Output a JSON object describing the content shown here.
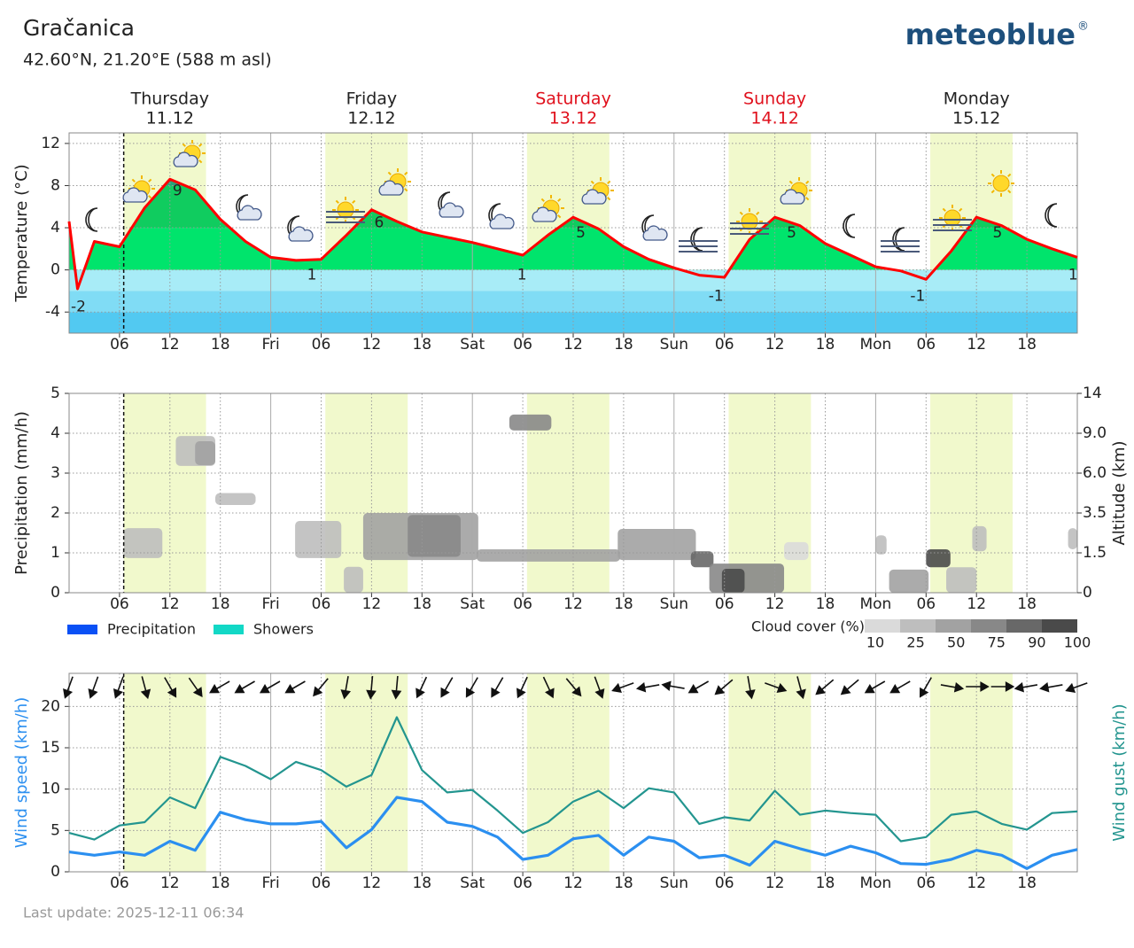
{
  "header": {
    "title": "Gračanica",
    "subtitle": "42.60°N, 21.20°E (588 m asl)",
    "logo": "meteoblue",
    "logo_mark": "®"
  },
  "days": [
    {
      "name": "Thursday",
      "date": "11.12",
      "color": "#222222"
    },
    {
      "name": "Friday",
      "date": "12.12",
      "color": "#222222"
    },
    {
      "name": "Saturday",
      "date": "13.12",
      "color": "#e0101c"
    },
    {
      "name": "Sunday",
      "date": "14.12",
      "color": "#e0101c"
    },
    {
      "name": "Monday",
      "date": "15.12",
      "color": "#222222"
    }
  ],
  "time_axis": {
    "xlim": [
      0,
      120
    ],
    "xticks": [
      {
        "value": 6,
        "label": "06"
      },
      12,
      18,
      {
        "value": 24,
        "label": "Fri"
      },
      {
        "value": 30,
        "label": "06"
      },
      {
        "value": 36,
        "label": "12"
      },
      {
        "value": 42,
        "label": "18"
      },
      {
        "value": 48,
        "label": "Sat"
      },
      {
        "value": 54,
        "label": "06"
      },
      {
        "value": 60,
        "label": "12"
      },
      {
        "value": 66,
        "label": "18"
      },
      {
        "value": 72,
        "label": "Sun"
      },
      {
        "value": 78,
        "label": "06"
      },
      {
        "value": 84,
        "label": "12"
      },
      {
        "value": 90,
        "label": "18"
      },
      {
        "value": 96,
        "label": "Mon"
      },
      {
        "value": 102,
        "label": "06"
      },
      {
        "value": 108,
        "label": "12"
      },
      {
        "value": 114,
        "label": "18"
      }
    ],
    "now": 6.5,
    "daylight": [
      [
        6.5,
        16.3
      ],
      [
        30.5,
        40.3
      ],
      [
        54.5,
        64.3
      ],
      [
        78.5,
        88.3
      ],
      [
        102.5,
        112.3
      ]
    ],
    "daylight_color": "#f1f9cc"
  },
  "chart_data": [
    {
      "type": "temperature",
      "ylabel": "Temperature (°C)",
      "ylim": [
        -6,
        13
      ],
      "yticks": [
        -4,
        0,
        4,
        8,
        12
      ],
      "grid": true,
      "color": "#ff0000",
      "x": [
        0,
        1,
        3,
        6,
        9,
        12,
        15,
        18,
        21,
        24,
        27,
        30,
        33,
        36,
        39,
        42,
        45,
        48,
        51,
        54,
        57,
        60,
        63,
        66,
        69,
        72,
        75,
        78,
        81,
        84,
        87,
        90,
        93,
        96,
        99,
        102,
        105,
        108,
        111,
        114,
        117,
        120
      ],
      "values": [
        4.6,
        -1.8,
        2.7,
        2.2,
        5.9,
        8.6,
        7.6,
        4.8,
        2.7,
        1.2,
        0.9,
        1.0,
        3.3,
        5.7,
        4.6,
        3.6,
        3.1,
        2.6,
        2.0,
        1.4,
        3.3,
        5.0,
        3.9,
        2.2,
        1.0,
        0.2,
        -0.5,
        -0.7,
        2.9,
        5.0,
        4.2,
        2.5,
        1.4,
        0.3,
        -0.1,
        -0.9,
        1.8,
        5.0,
        4.2,
        2.9,
        2.0,
        1.2
      ],
      "fill_bands": [
        {
          "from": 8,
          "to": 13,
          "color": "#2aa27a"
        },
        {
          "from": 4,
          "to": 8,
          "color": "#10cc5f"
        },
        {
          "from": 0,
          "to": 4,
          "color": "#00e46c"
        },
        {
          "from": -2,
          "to": 0,
          "color": "#a8ecf7"
        },
        {
          "from": -4,
          "to": -2,
          "color": "#80dcf5"
        },
        {
          "from": -6,
          "to": -4,
          "color": "#52c9f1"
        }
      ],
      "extremes": [
        {
          "x": 1.1,
          "value": -2
        },
        {
          "x": 12.9,
          "value": 9
        },
        {
          "x": 28.9,
          "value": 1
        },
        {
          "x": 36.9,
          "value": 6
        },
        {
          "x": 53.9,
          "value": 1
        },
        {
          "x": 60.9,
          "value": 5
        },
        {
          "x": 77,
          "value": -1
        },
        {
          "x": 86,
          "value": 5
        },
        {
          "x": 101,
          "value": -1
        },
        {
          "x": 110.5,
          "value": 5
        },
        {
          "x": 119.5,
          "value": 1
        }
      ]
    },
    {
      "type": "cloud",
      "ylabel": "Precipitation (mm/h)",
      "y2label": "Altitude (km)",
      "ylim": [
        0,
        5
      ],
      "yticks": [
        0,
        1,
        2,
        3,
        4,
        5
      ],
      "y2lim": [
        0,
        14
      ],
      "y2ticks": [
        0,
        1.5,
        3.5,
        {
          "value": 6,
          "label": "6.0"
        },
        {
          "value": 9,
          "label": "9.0"
        },
        14
      ],
      "grid": true,
      "legend": [
        {
          "name": "Precipitation",
          "color": "#0a50f5"
        },
        {
          "name": "Showers",
          "color": "#12d8c6"
        }
      ],
      "cloud_cover": {
        "label": "Cloud cover (%)",
        "levels": [
          10,
          25,
          50,
          75,
          90,
          100
        ],
        "colors": [
          "#dadada",
          "#bebebe",
          "#a2a2a2",
          "#888888",
          "#686868",
          "#4a4a4a"
        ]
      },
      "clouds": [
        {
          "x": [
            6.5,
            11.1
          ],
          "y": [
            0.87,
            1.62
          ],
          "cover": 25
        },
        {
          "x": [
            12.7,
            17.4
          ],
          "y": [
            3.18,
            3.93
          ],
          "cover": 25
        },
        {
          "x": [
            15,
            17.4
          ],
          "y": [
            3.2,
            3.8
          ],
          "cover": 50
        },
        {
          "x": [
            17.4,
            22.2
          ],
          "y": [
            2.2,
            2.5
          ],
          "cover": 25
        },
        {
          "x": [
            26.9,
            32.4
          ],
          "y": [
            0.87,
            1.8
          ],
          "cover": 25
        },
        {
          "x": [
            32.7,
            35
          ],
          "y": [
            0,
            0.65
          ],
          "cover": 25
        },
        {
          "x": [
            35,
            48.7
          ],
          "y": [
            0.82,
            2.0
          ],
          "cover": 50
        },
        {
          "x": [
            40.3,
            46.6
          ],
          "y": [
            0.9,
            1.95
          ],
          "cover": 75
        },
        {
          "x": [
            52.4,
            57.4
          ],
          "y": [
            4.07,
            4.47
          ],
          "cover": 75
        },
        {
          "x": [
            48.5,
            65.6
          ],
          "y": [
            0.78,
            1.09
          ],
          "cover": 50
        },
        {
          "x": [
            65.3,
            74.6
          ],
          "y": [
            0.82,
            1.6
          ],
          "cover": 50
        },
        {
          "x": [
            74,
            76.7
          ],
          "y": [
            0.64,
            1.04
          ],
          "cover": 90
        },
        {
          "x": [
            76.2,
            85.1
          ],
          "y": [
            0,
            0.73
          ],
          "cover": 75
        },
        {
          "x": [
            77.7,
            80.4
          ],
          "y": [
            0,
            0.6
          ],
          "cover": 100
        },
        {
          "x": [
            85.1,
            88
          ],
          "y": [
            0.82,
            1.27
          ],
          "cover": 10
        },
        {
          "x": [
            96,
            97.3
          ],
          "y": [
            0.96,
            1.44
          ],
          "cover": 25
        },
        {
          "x": [
            97.6,
            102.3
          ],
          "y": [
            0,
            0.58
          ],
          "cover": 50
        },
        {
          "x": [
            102,
            104.9
          ],
          "y": [
            0.64,
            1.09
          ],
          "cover": 100
        },
        {
          "x": [
            104.4,
            108
          ],
          "y": [
            0,
            0.64
          ],
          "cover": 25
        },
        {
          "x": [
            107.5,
            109.2
          ],
          "y": [
            1.04,
            1.67
          ],
          "cover": 25
        },
        {
          "x": [
            118.9,
            120
          ],
          "y": [
            1.09,
            1.62
          ],
          "cover": 25
        }
      ]
    },
    {
      "type": "wind",
      "ylabel": "Wind speed (km/h)",
      "y2label": "Wind gust (km/h)",
      "ylim": [
        0,
        24
      ],
      "yticks": [
        0,
        5,
        10,
        15,
        20
      ],
      "y2lim": [
        0,
        24
      ],
      "grid": true,
      "x": [
        0,
        3,
        6,
        9,
        12,
        15,
        18,
        21,
        24,
        27,
        30,
        33,
        36,
        39,
        42,
        45,
        48,
        51,
        54,
        57,
        60,
        63,
        66,
        69,
        72,
        75,
        78,
        81,
        84,
        87,
        90,
        93,
        96,
        99,
        102,
        105,
        108,
        111,
        114,
        117,
        120
      ],
      "series": [
        {
          "color": "#2b8ff0",
          "values": [
            2.4,
            2.0,
            2.4,
            2.0,
            3.7,
            2.6,
            7.2,
            6.3,
            5.8,
            5.8,
            6.1,
            2.9,
            5.1,
            9.0,
            8.5,
            6.0,
            5.5,
            4.2,
            1.5,
            2.0,
            4.0,
            4.4,
            2.0,
            4.2,
            3.7,
            1.7,
            2.0,
            0.8,
            3.7,
            2.8,
            2.0,
            3.1,
            2.3,
            1.0,
            0.9,
            1.5,
            2.6,
            2.0,
            0.4,
            2.0,
            2.7
          ]
        },
        {
          "color": "#23958f",
          "axis": "y2",
          "values": [
            4.7,
            3.9,
            5.6,
            6.0,
            9.0,
            7.7,
            13.9,
            12.8,
            11.2,
            13.3,
            12.3,
            10.3,
            11.7,
            18.7,
            12.3,
            9.6,
            9.9,
            7.4,
            4.7,
            6.0,
            8.5,
            9.8,
            7.7,
            10.1,
            9.6,
            5.8,
            6.6,
            6.2,
            9.8,
            6.9,
            7.4,
            7.1,
            6.9,
            3.7,
            4.2,
            6.9,
            7.3,
            5.8,
            5.1,
            7.1,
            7.3
          ]
        }
      ],
      "wind_direction": [
        20,
        20,
        20,
        345,
        330,
        325,
        60,
        60,
        60,
        60,
        40,
        10,
        5,
        5,
        25,
        30,
        30,
        30,
        25,
        335,
        320,
        340,
        70,
        80,
        100,
        60,
        50,
        350,
        290,
        345,
        50,
        50,
        60,
        60,
        30,
        280,
        270,
        270,
        80,
        80,
        70
      ]
    }
  ],
  "footer": "Last update: 2025-12-11 06:34"
}
